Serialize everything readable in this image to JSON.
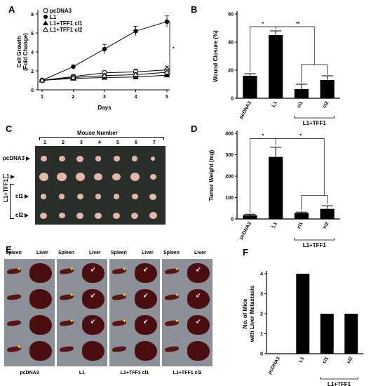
{
  "panels": {
    "a": "A",
    "b": "B",
    "c": "C",
    "d": "D",
    "e": "E",
    "f": "F"
  },
  "chart_a": {
    "type": "line",
    "xlabel": "Days",
    "ylabel_line1": "Cell Growth",
    "ylabel_line2": "(Fold Change)",
    "x": [
      1,
      2,
      3,
      4,
      5
    ],
    "xlim": [
      1,
      5
    ],
    "ylim": [
      0,
      8
    ],
    "yticks": [
      "0",
      "2",
      "4",
      "6",
      "8"
    ],
    "series": [
      {
        "name": "pcDNA3",
        "marker": "open-circle",
        "values": [
          1,
          1.4,
          1.8,
          1.9,
          2.1
        ],
        "err": [
          0.1,
          0.2,
          0.2,
          0.3,
          0.4
        ]
      },
      {
        "name": "L1",
        "marker": "filled-circle",
        "values": [
          1,
          2.45,
          4.3,
          6.2,
          7.2
        ],
        "err": [
          0.1,
          0.15,
          0.5,
          0.5,
          0.6
        ]
      },
      {
        "name": "L1+TFF1 cl1",
        "marker": "filled-triangle",
        "values": [
          1,
          1.2,
          1.3,
          1.35,
          1.55
        ],
        "err": [
          0.1,
          0.2,
          0.2,
          0.2,
          0.2
        ]
      },
      {
        "name": "L1+TFF1 cl2",
        "marker": "open-triangle",
        "values": [
          1,
          1.3,
          1.5,
          1.6,
          1.85
        ],
        "err": [
          0.1,
          0.2,
          0.2,
          0.2,
          0.3
        ]
      }
    ],
    "significance": "*"
  },
  "chart_b": {
    "type": "bar",
    "ylabel": "Wound Closure (%)",
    "ylim": [
      0,
      60
    ],
    "yticks": [
      "0",
      "20",
      "40",
      "60"
    ],
    "categories": [
      "pcDNA3",
      "L1",
      "cl1",
      "cl2"
    ],
    "values": [
      16,
      45,
      6.5,
      13
    ],
    "err": [
      1.5,
      3,
      3.5,
      3
    ],
    "group_label": "L1+TFF1",
    "sig_left": "*",
    "sig_right": "**"
  },
  "chart_d": {
    "type": "bar",
    "ylabel": "Tumor Weight (mg)",
    "ylim": [
      0,
      400
    ],
    "yticks": [
      "0",
      "100",
      "200",
      "300",
      "400"
    ],
    "categories": [
      "pcDNA3",
      "L1",
      "cl1",
      "cl2"
    ],
    "values": [
      18,
      290,
      28,
      47
    ],
    "err": [
      4,
      45,
      4,
      15
    ],
    "group_label": "L1+TFF1",
    "sig_left": "*",
    "sig_right": "*"
  },
  "chart_f": {
    "type": "bar",
    "ylabel_line1": "No. of Mice",
    "ylabel_line2": "with Liver Metastasis",
    "ylim": [
      0,
      4
    ],
    "yticks": [
      "0",
      "1",
      "2",
      "3",
      "4"
    ],
    "categories": [
      "pcDNA3",
      "L1",
      "cl1",
      "cl2"
    ],
    "values": [
      0,
      4,
      2,
      2
    ],
    "group_label": "L1+TFF1"
  },
  "panel_c": {
    "title": "Mouse Number",
    "mouse_numbers": [
      "1",
      "2",
      "3",
      "4",
      "5",
      "6",
      "7"
    ],
    "rows": [
      "pcDNA3",
      "L1",
      "cl1",
      "cl2"
    ],
    "group_label": "L1+TFF1"
  },
  "panel_e": {
    "columns": [
      {
        "spleen": "Spleen",
        "liver": "Liver",
        "label": "pcDNA3"
      },
      {
        "spleen": "Spleen",
        "liver": "Liver",
        "label": "L1"
      },
      {
        "spleen": "Spleen",
        "liver": "Liver",
        "label": "L1+TFF1 cl1"
      },
      {
        "spleen": "Spleen",
        "liver": "Liver",
        "label": "L1+TFF1 cl2"
      }
    ]
  },
  "colors": {
    "bar": "#000000",
    "photo_bg": "#2b2f2c",
    "tumor": "#e3b7a9",
    "liver": "#4a0d10",
    "marker_star": "#e8e020"
  }
}
